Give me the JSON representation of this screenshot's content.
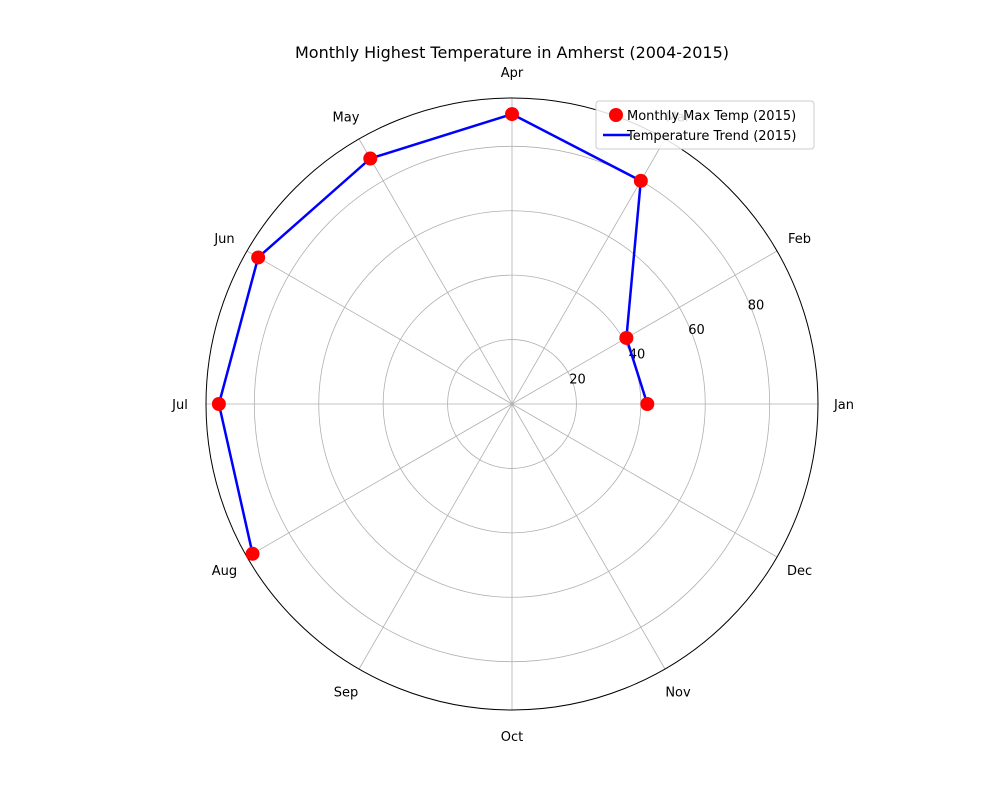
{
  "chart_data": {
    "type": "polar-line-scatter",
    "title": "Monthly Highest Temperature in Amherst (2004-2015)",
    "angle_labels": [
      "Jan",
      "Feb",
      "Mar",
      "Apr",
      "May",
      "Jun",
      "Jul",
      "Aug",
      "Sep",
      "Oct",
      "Nov",
      "Dec"
    ],
    "radial_ticks": [
      20,
      40,
      60,
      80
    ],
    "rlim": [
      0,
      95
    ],
    "grid": true,
    "legend": "top-right",
    "series": [
      {
        "name": "Monthly Max Temp (2015)",
        "kind": "scatter",
        "color": "#ff0000",
        "months": [
          "Jan",
          "Feb",
          "Mar",
          "Apr",
          "May",
          "Jun",
          "Jul",
          "Aug"
        ],
        "values": [
          42,
          41,
          80,
          90,
          88,
          91,
          91,
          93
        ]
      },
      {
        "name": "Temperature Trend (2015)",
        "kind": "line",
        "color": "#0000ff",
        "months": [
          "Jan",
          "Feb",
          "Mar",
          "Apr",
          "May",
          "Jun",
          "Jul",
          "Aug"
        ],
        "values": [
          42,
          41,
          80,
          90,
          88,
          91,
          91,
          93
        ]
      }
    ]
  }
}
